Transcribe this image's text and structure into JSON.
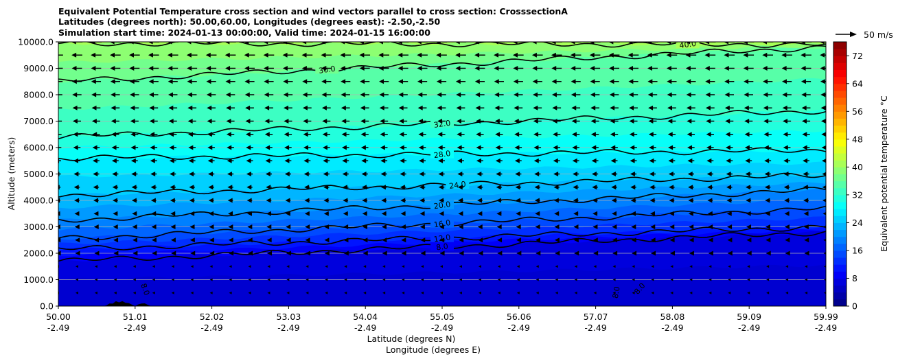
{
  "titles": {
    "line1": "Equivalent Potential Temperature cross section and wind vectors parallel to cross section: CrosssectionA",
    "line2": "Latitudes (degrees north): 50.00,60.00, Longitudes (degrees east): -2.50,-2.50",
    "line3": "Simulation start time: 2024-01-13 00:00:00, Valid time: 2024-01-15 16:00:00"
  },
  "quiver_key": "50 m/s",
  "chart_data": {
    "type": "contour",
    "title": "Equivalent Potential Temperature cross section and wind vectors parallel to cross section: CrosssectionA",
    "xlabel": "Latitude (degrees N)",
    "xlabel2": "Longitude (degrees E)",
    "ylabel": "Altitude (meters)",
    "ylim": [
      0,
      10000
    ],
    "y_ticks": [
      0,
      1000,
      2000,
      3000,
      4000,
      5000,
      6000,
      7000,
      8000,
      9000,
      10000
    ],
    "y_tick_labels": [
      "0.0",
      "1000.0",
      "2000.0",
      "3000.0",
      "4000.0",
      "5000.0",
      "6000.0",
      "7000.0",
      "8000.0",
      "9000.0",
      "10000.0"
    ],
    "x_tick_lat": [
      "50.00",
      "51.01",
      "52.02",
      "53.03",
      "54.04",
      "55.05",
      "56.06",
      "57.07",
      "58.08",
      "59.09",
      "59.99"
    ],
    "x_tick_lon": [
      "-2.49",
      "-2.49",
      "-2.49",
      "-2.49",
      "-2.49",
      "-2.49",
      "-2.49",
      "-2.49",
      "-2.49",
      "-2.49",
      "-2.49"
    ],
    "x_lat_range": [
      50.0,
      59.99
    ],
    "colorbar": {
      "label": "Equivalent potential temperature $^\\circ$C",
      "label_text": "Equivalent potential temperature °C",
      "range": [
        0,
        76
      ],
      "ticks": [
        0,
        8,
        16,
        24,
        32,
        40,
        48,
        56,
        64,
        72
      ],
      "step": 2
    },
    "contour_lines": [
      {
        "level": 8,
        "label": "8.0",
        "alt_start": 1700,
        "alt_end": 2800
      },
      {
        "level": 12,
        "label": "12.0",
        "alt_start": 2150,
        "alt_end": 3000
      },
      {
        "level": 16,
        "label": "16.0",
        "alt_start": 2550,
        "alt_end": 3700
      },
      {
        "level": 20,
        "label": "20.0",
        "alt_start": 3250,
        "alt_end": 4400
      },
      {
        "level": 24,
        "label": "24.0",
        "alt_start": 4200,
        "alt_end": 4950
      },
      {
        "level": 28,
        "label": "28.0",
        "alt_start": 5600,
        "alt_end": 5900
      },
      {
        "level": 32,
        "label": "32.0",
        "alt_start": 6400,
        "alt_end": 7400
      },
      {
        "level": 36,
        "label": "36.0",
        "alt_start": 8500,
        "alt_end": 9800
      },
      {
        "level": 40,
        "label": "40.0",
        "alt_start": 9950,
        "alt_end": 9900
      }
    ],
    "low_contour_labels": [
      "8.0",
      "8.0",
      "8.0"
    ],
    "wind_vectors": {
      "direction": "southward (leftward) along section",
      "reference_speed_ms": 50,
      "levels_m": [
        0,
        500,
        1000,
        1500,
        2000,
        2500,
        3000,
        3500,
        4000,
        4500,
        5000,
        5500,
        6000,
        6500,
        7000,
        7500,
        8000,
        8500,
        9000,
        9500,
        10000
      ],
      "approx_speed_ms_by_level": [
        1,
        1,
        2,
        3,
        4,
        5,
        6,
        7,
        8,
        9,
        10,
        11,
        12,
        13,
        14,
        15,
        16,
        17,
        18,
        19,
        20
      ]
    }
  }
}
